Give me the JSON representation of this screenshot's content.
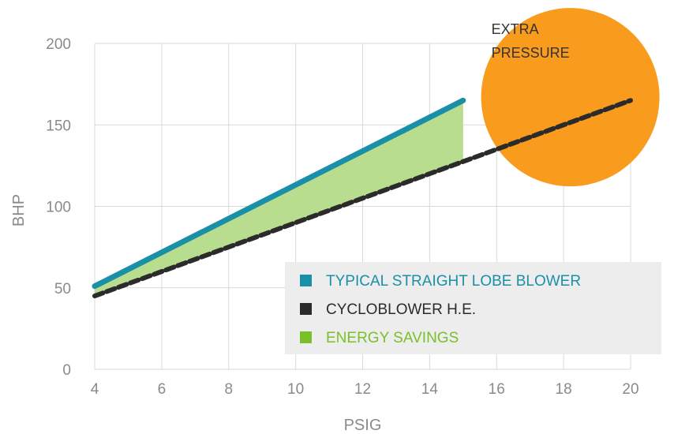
{
  "chart_data": {
    "type": "line",
    "xlabel": "PSIG",
    "ylabel": "BHP",
    "xlim": [
      4,
      20
    ],
    "ylim": [
      0,
      200
    ],
    "x_ticks": [
      4,
      6,
      8,
      10,
      12,
      14,
      16,
      18,
      20
    ],
    "y_ticks": [
      0,
      50,
      100,
      150,
      200
    ],
    "grid": true,
    "series": [
      {
        "name": "TYPICAL STRAIGHT LOBE BLOWER",
        "color": "#1a8fa8",
        "style": "solid",
        "points": [
          [
            4,
            51
          ],
          [
            15,
            165
          ]
        ]
      },
      {
        "name": "CYCLOBLOWER H.E.",
        "color": "#2b2b2b",
        "style": "dashed",
        "points": [
          [
            4,
            45
          ],
          [
            20,
            165
          ]
        ]
      }
    ],
    "area": {
      "name": "ENERGY SAVINGS",
      "color": "#b9dd8e",
      "between": [
        "TYPICAL STRAIGHT LOBE BLOWER",
        "CYCLOBLOWER H.E."
      ],
      "x_range": [
        4,
        15
      ]
    },
    "legend": {
      "placement": "bottom-right",
      "items": [
        {
          "label": "TYPICAL STRAIGHT LOBE BLOWER",
          "color": "#1a8fa8",
          "text_color": "#1a8fa8"
        },
        {
          "label": "CYCLOBLOWER H.E.",
          "color": "#2b2b2b",
          "text_color": "#2b2b2b"
        },
        {
          "label": "ENERGY SAVINGS",
          "color": "#7bbf2a",
          "text_color": "#7bbf2a"
        }
      ]
    },
    "annotation": {
      "lines": [
        "EXTRA",
        "PRESSURE"
      ],
      "color": "#f99b1c",
      "x": 18.2,
      "y": 167
    }
  }
}
